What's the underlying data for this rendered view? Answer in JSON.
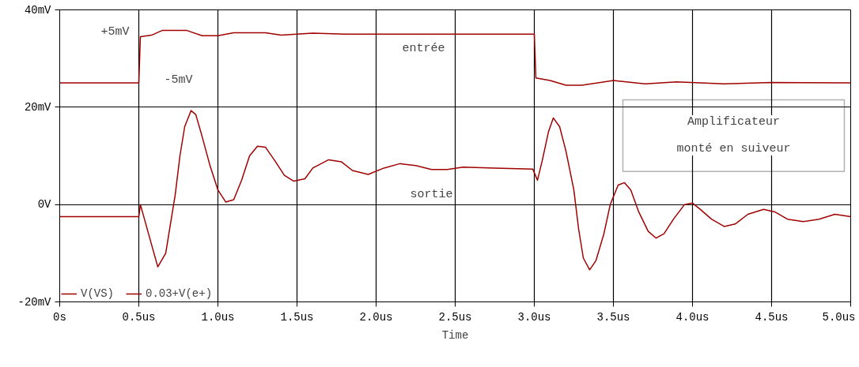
{
  "chart_data": {
    "type": "line",
    "xlabel": "Time",
    "xlim": [
      0,
      5
    ],
    "ylim": [
      -20,
      40
    ],
    "xticks": [
      {
        "value": 0,
        "label": "0s"
      },
      {
        "value": 0.5,
        "label": "0.5us"
      },
      {
        "value": 1.0,
        "label": "1.0us"
      },
      {
        "value": 1.5,
        "label": "1.5us"
      },
      {
        "value": 2.0,
        "label": "2.0us"
      },
      {
        "value": 2.5,
        "label": "2.5us"
      },
      {
        "value": 3.0,
        "label": "3.0us"
      },
      {
        "value": 3.5,
        "label": "3.5us"
      },
      {
        "value": 4.0,
        "label": "4.0us"
      },
      {
        "value": 4.5,
        "label": "4.5us"
      },
      {
        "value": 5.0,
        "label": "5.0us"
      }
    ],
    "yticks": [
      {
        "value": -20,
        "label": "-20mV"
      },
      {
        "value": 0,
        "label": "0V"
      },
      {
        "value": 20,
        "label": "20mV"
      },
      {
        "value": 40,
        "label": "40mV"
      }
    ],
    "grid": true,
    "legend": "bottom left",
    "series": [
      {
        "name": "V(VS)",
        "color": "#a00000",
        "x": [
          0,
          0.5,
          0.51,
          0.57,
          0.62,
          0.67,
          0.7,
          0.73,
          0.76,
          0.79,
          0.83,
          0.86,
          0.9,
          0.95,
          1.0,
          1.05,
          1.1,
          1.15,
          1.2,
          1.25,
          1.3,
          1.36,
          1.42,
          1.48,
          1.55,
          1.6,
          1.7,
          1.78,
          1.85,
          1.95,
          2.05,
          2.15,
          2.25,
          2.35,
          2.45,
          2.55,
          2.75,
          2.99,
          3.02,
          3.05,
          3.09,
          3.12,
          3.16,
          3.2,
          3.25,
          3.28,
          3.31,
          3.35,
          3.39,
          3.44,
          3.48,
          3.53,
          3.57,
          3.61,
          3.66,
          3.72,
          3.77,
          3.82,
          3.88,
          3.95,
          4.0,
          4.05,
          4.12,
          4.2,
          4.27,
          4.35,
          4.45,
          4.52,
          4.6,
          4.7,
          4.8,
          4.9,
          5.0
        ],
        "values": [
          -2.5,
          -2.5,
          0,
          -7,
          -12.8,
          -10,
          -4,
          2,
          10,
          16,
          19.3,
          18.5,
          14,
          8,
          3,
          0.5,
          1,
          5,
          10,
          12,
          11.8,
          9,
          6,
          4.8,
          5.3,
          7.5,
          9.2,
          8.8,
          7,
          6.2,
          7.5,
          8.4,
          8,
          7.2,
          7.2,
          7.7,
          7.5,
          7.3,
          5,
          9,
          15,
          17.8,
          16,
          11,
          3,
          -5,
          -11,
          -13.4,
          -11.5,
          -6,
          0,
          4,
          4.5,
          3,
          -1.5,
          -5.5,
          -6.9,
          -6,
          -3,
          0,
          0.3,
          -1,
          -3,
          -4.5,
          -4,
          -2,
          -1,
          -1.5,
          -3,
          -3.5,
          -3,
          -2,
          -2.5
        ]
      },
      {
        "name": "0.03+V(e+)",
        "color": "#a00000",
        "x": [
          0,
          0.5,
          0.51,
          0.58,
          0.65,
          0.8,
          0.9,
          1.0,
          1.1,
          1.3,
          1.4,
          1.6,
          1.8,
          3.0,
          3.01,
          3.1,
          3.2,
          3.3,
          3.5,
          3.7,
          3.9,
          4.2,
          4.5,
          5.0
        ],
        "values": [
          25,
          25,
          34.5,
          34.8,
          35.8,
          35.8,
          34.7,
          34.7,
          35.3,
          35.3,
          34.8,
          35.2,
          35.0,
          35.0,
          26,
          25.5,
          24.5,
          24.5,
          25.5,
          24.8,
          25.2,
          24.8,
          25.1,
          25
        ]
      }
    ],
    "annotations": [
      "+5mV",
      "-5mV",
      "entrée",
      "sortie",
      "Amplificateur\nmonté en suiveur"
    ]
  }
}
